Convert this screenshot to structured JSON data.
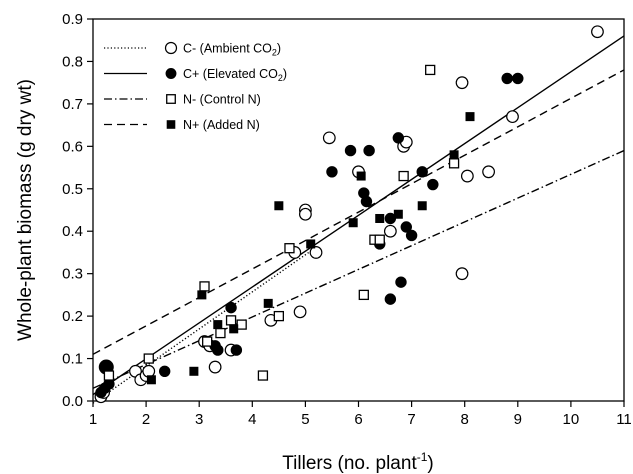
{
  "chart_data": {
    "type": "scatter",
    "xlabel": "Tillers (no. plant",
    "xlabel_sup": "-1",
    "xlabel_end": ")",
    "ylabel": "Whole-plant biomass (g dry wt)",
    "xlim": [
      1,
      11
    ],
    "ylim": [
      0,
      0.9
    ],
    "xticks": [
      1,
      2,
      3,
      4,
      5,
      6,
      7,
      8,
      9,
      10,
      11
    ],
    "yticks": [
      0.0,
      0.1,
      0.2,
      0.3,
      0.4,
      0.5,
      0.6,
      0.7,
      0.8,
      0.9
    ],
    "ytick_labels": [
      "0.0",
      "0.1",
      "0.2",
      "0.3",
      "0.4",
      "0.5",
      "0.6",
      "0.7",
      "0.8",
      "0.9"
    ],
    "grid": false,
    "legend_position": "top-left",
    "legend": [
      {
        "marker": "open-circle",
        "line": "dotted",
        "label_prefix": "C-  (Ambient CO",
        "label_sub": "2",
        "label_suffix": ")"
      },
      {
        "marker": "filled-circle",
        "line": "solid",
        "label_prefix": "C+ (Elevated CO",
        "label_sub": "2",
        "label_suffix": ")"
      },
      {
        "marker": "open-square",
        "line": "dash-dot",
        "label_prefix": "N-  (Control N)",
        "label_sub": "",
        "label_suffix": ""
      },
      {
        "marker": "filled-square",
        "line": "dashed",
        "label_prefix": "N+ (Added N)",
        "label_sub": "",
        "label_suffix": ""
      }
    ],
    "series": [
      {
        "marker": "open-circle",
        "points": [
          [
            1.15,
            0.01
          ],
          [
            1.2,
            0.02
          ],
          [
            1.8,
            0.07
          ],
          [
            1.9,
            0.05
          ],
          [
            2.0,
            0.06
          ],
          [
            2.05,
            0.07
          ],
          [
            3.1,
            0.14
          ],
          [
            3.2,
            0.13
          ],
          [
            3.3,
            0.08
          ],
          [
            3.6,
            0.12
          ],
          [
            4.35,
            0.19
          ],
          [
            4.8,
            0.35
          ],
          [
            4.9,
            0.21
          ],
          [
            5.0,
            0.45
          ],
          [
            5.0,
            0.44
          ],
          [
            5.2,
            0.35
          ],
          [
            5.45,
            0.62
          ],
          [
            6.0,
            0.54
          ],
          [
            6.6,
            0.4
          ],
          [
            6.85,
            0.6
          ],
          [
            6.9,
            0.61
          ],
          [
            7.95,
            0.75
          ],
          [
            7.95,
            0.3
          ],
          [
            8.05,
            0.53
          ],
          [
            8.45,
            0.54
          ],
          [
            8.9,
            0.67
          ],
          [
            10.5,
            0.87
          ]
        ]
      },
      {
        "marker": "filled-circle",
        "points": [
          [
            1.15,
            0.02
          ],
          [
            1.22,
            0.03
          ],
          [
            1.25,
            0.08
          ],
          [
            1.3,
            0.04
          ],
          [
            2.35,
            0.07
          ],
          [
            3.3,
            0.13
          ],
          [
            3.35,
            0.12
          ],
          [
            3.6,
            0.22
          ],
          [
            3.7,
            0.12
          ],
          [
            5.5,
            0.54
          ],
          [
            5.85,
            0.59
          ],
          [
            6.1,
            0.49
          ],
          [
            6.15,
            0.47
          ],
          [
            6.2,
            0.59
          ],
          [
            6.4,
            0.37
          ],
          [
            6.6,
            0.43
          ],
          [
            6.6,
            0.24
          ],
          [
            6.75,
            0.62
          ],
          [
            6.8,
            0.28
          ],
          [
            6.9,
            0.41
          ],
          [
            7.0,
            0.39
          ],
          [
            7.2,
            0.54
          ],
          [
            7.4,
            0.51
          ],
          [
            8.8,
            0.76
          ],
          [
            9.0,
            0.76
          ]
        ]
      },
      {
        "marker": "open-square",
        "points": [
          [
            1.3,
            0.06
          ],
          [
            2.05,
            0.1
          ],
          [
            3.1,
            0.27
          ],
          [
            3.15,
            0.14
          ],
          [
            3.4,
            0.16
          ],
          [
            3.6,
            0.19
          ],
          [
            3.8,
            0.18
          ],
          [
            4.2,
            0.06
          ],
          [
            4.5,
            0.2
          ],
          [
            4.7,
            0.36
          ],
          [
            6.1,
            0.25
          ],
          [
            6.3,
            0.38
          ],
          [
            6.4,
            0.38
          ],
          [
            6.85,
            0.53
          ],
          [
            7.35,
            0.78
          ],
          [
            7.8,
            0.56
          ]
        ]
      },
      {
        "marker": "filled-square",
        "points": [
          [
            2.1,
            0.05
          ],
          [
            2.9,
            0.07
          ],
          [
            3.05,
            0.25
          ],
          [
            3.35,
            0.18
          ],
          [
            3.65,
            0.17
          ],
          [
            4.3,
            0.23
          ],
          [
            4.5,
            0.46
          ],
          [
            5.1,
            0.37
          ],
          [
            5.9,
            0.42
          ],
          [
            6.05,
            0.53
          ],
          [
            6.4,
            0.43
          ],
          [
            6.75,
            0.44
          ],
          [
            7.2,
            0.46
          ],
          [
            7.8,
            0.58
          ],
          [
            8.1,
            0.67
          ]
        ]
      }
    ],
    "fit_lines": [
      {
        "style": "dotted",
        "x": [
          1.0,
          5.2
        ],
        "y": [
          -0.005,
          0.362
        ]
      },
      {
        "style": "solid",
        "x": [
          1.0,
          11.0
        ],
        "y": [
          0.015,
          0.86
        ]
      },
      {
        "style": "dash-dot",
        "x": [
          1.0,
          11.0
        ],
        "y": [
          0.03,
          0.59
        ]
      },
      {
        "style": "dashed",
        "x": [
          1.0,
          11.0
        ],
        "y": [
          0.11,
          0.78
        ]
      }
    ]
  }
}
